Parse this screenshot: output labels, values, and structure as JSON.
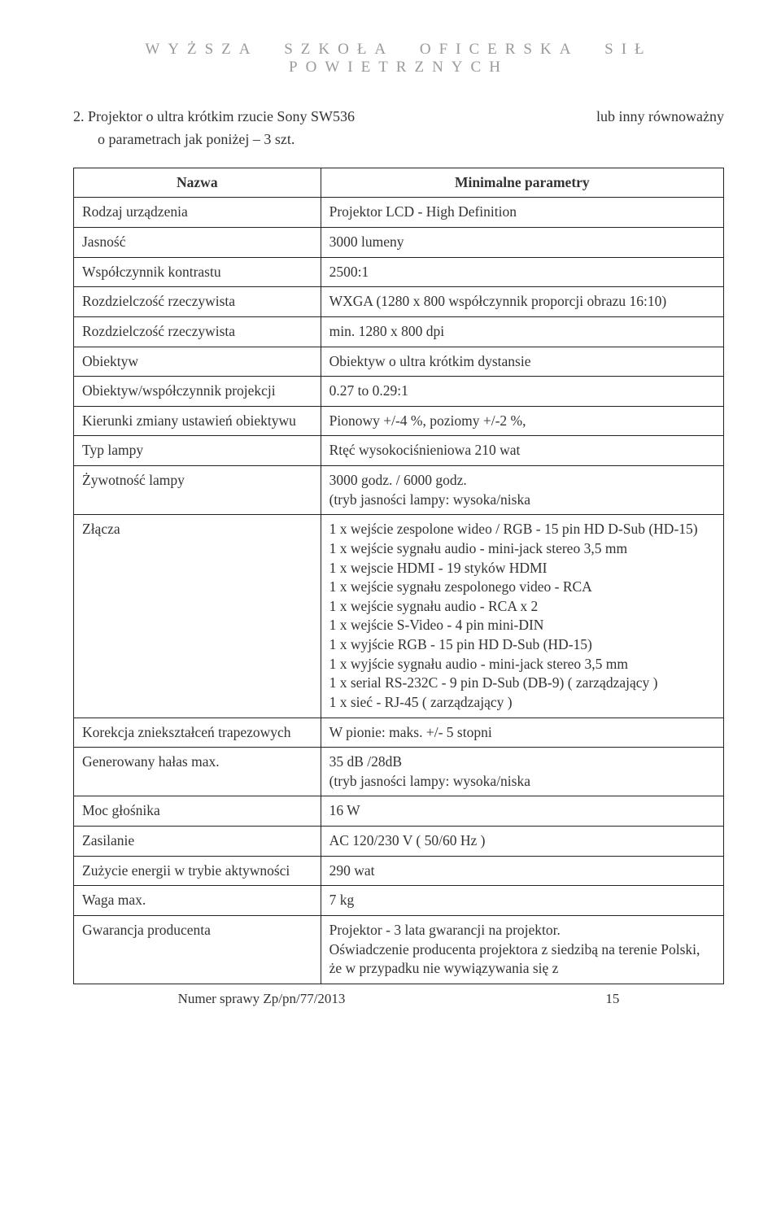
{
  "header_spaced": "WYŻSZA SZKOŁA OFICERSKA SIŁ POWIETRZNYCH",
  "intro": {
    "line1_left": "2. Projektor o ultra krótkim rzucie Sony SW536",
    "line1_right": "lub inny równoważny",
    "line2": "o parametrach jak poniżej – 3 szt."
  },
  "table": {
    "head_left": "Nazwa",
    "head_right": "Minimalne parametry",
    "rows": [
      {
        "l": "Rodzaj urządzenia",
        "r": "Projektor LCD - High Definition"
      },
      {
        "l": "Jasność",
        "r": "3000 lumeny"
      },
      {
        "l": "Współczynnik kontrastu",
        "r": "2500:1"
      },
      {
        "l": "Rozdzielczość rzeczywista",
        "r": "WXGA (1280 x 800 współczynnik proporcji obrazu 16:10)"
      },
      {
        "l": "Rozdzielczość rzeczywista",
        "r": "min. 1280 x 800 dpi"
      },
      {
        "l": "Obiektyw",
        "r": "Obiektyw o ultra krótkim dystansie"
      },
      {
        "l": "Obiektyw/współczynnik projekcji",
        "r": "0.27 to 0.29:1"
      },
      {
        "l": "Kierunki zmiany ustawień obiektywu",
        "r": "Pionowy +/-4 %, poziomy +/-2 %,"
      },
      {
        "l": "Typ lampy",
        "r": "Rtęć wysokociśnieniowa 210 wat"
      },
      {
        "l": "Żywotność lampy",
        "r": "3000 godz. / 6000 godz.\n(tryb jasności lampy: wysoka/niska"
      },
      {
        "l": "Złącza",
        "r": "1 x wejście zespolone wideo / RGB - 15 pin HD D-Sub (HD-15)\n1 x wejście sygnału audio - mini-jack stereo 3,5 mm\n1 x wejscie HDMI - 19 styków HDMI\n1 x wejście sygnału zespolonego video - RCA\n1 x wejście sygnału audio - RCA x 2\n1 x wejście S-Video - 4 pin mini-DIN\n1 x wyjście RGB - 15 pin HD D-Sub (HD-15)\n1 x wyjście sygnału audio - mini-jack stereo 3,5 mm\n1 x serial RS-232C - 9 pin D-Sub (DB-9) ( zarządzający )\n1 x sieć - RJ-45 ( zarządzający )"
      },
      {
        "l": "Korekcja zniekształceń trapezowych",
        "r": "W pionie: maks. +/- 5 stopni"
      },
      {
        "l": "Generowany hałas max.",
        "r": "35 dB /28dB\n(tryb jasności lampy: wysoka/niska"
      },
      {
        "l": "Moc głośnika",
        "r": "16 W"
      },
      {
        "l": "Zasilanie",
        "r": "AC 120/230 V ( 50/60 Hz )"
      },
      {
        "l": "Zużycie energii w trybie aktywności",
        "r": "290 wat"
      },
      {
        "l": "Waga max.",
        "r": "7 kg"
      },
      {
        "l": "Gwarancja producenta",
        "r": "Projektor - 3 lata gwarancji na projektor.\nOświadczenie producenta projektora z siedzibą na terenie Polski, że w przypadku nie wywiązywania się z"
      }
    ]
  },
  "footer": {
    "case_no": "Numer sprawy  Zp/pn/77/2013",
    "page_no": "15"
  }
}
